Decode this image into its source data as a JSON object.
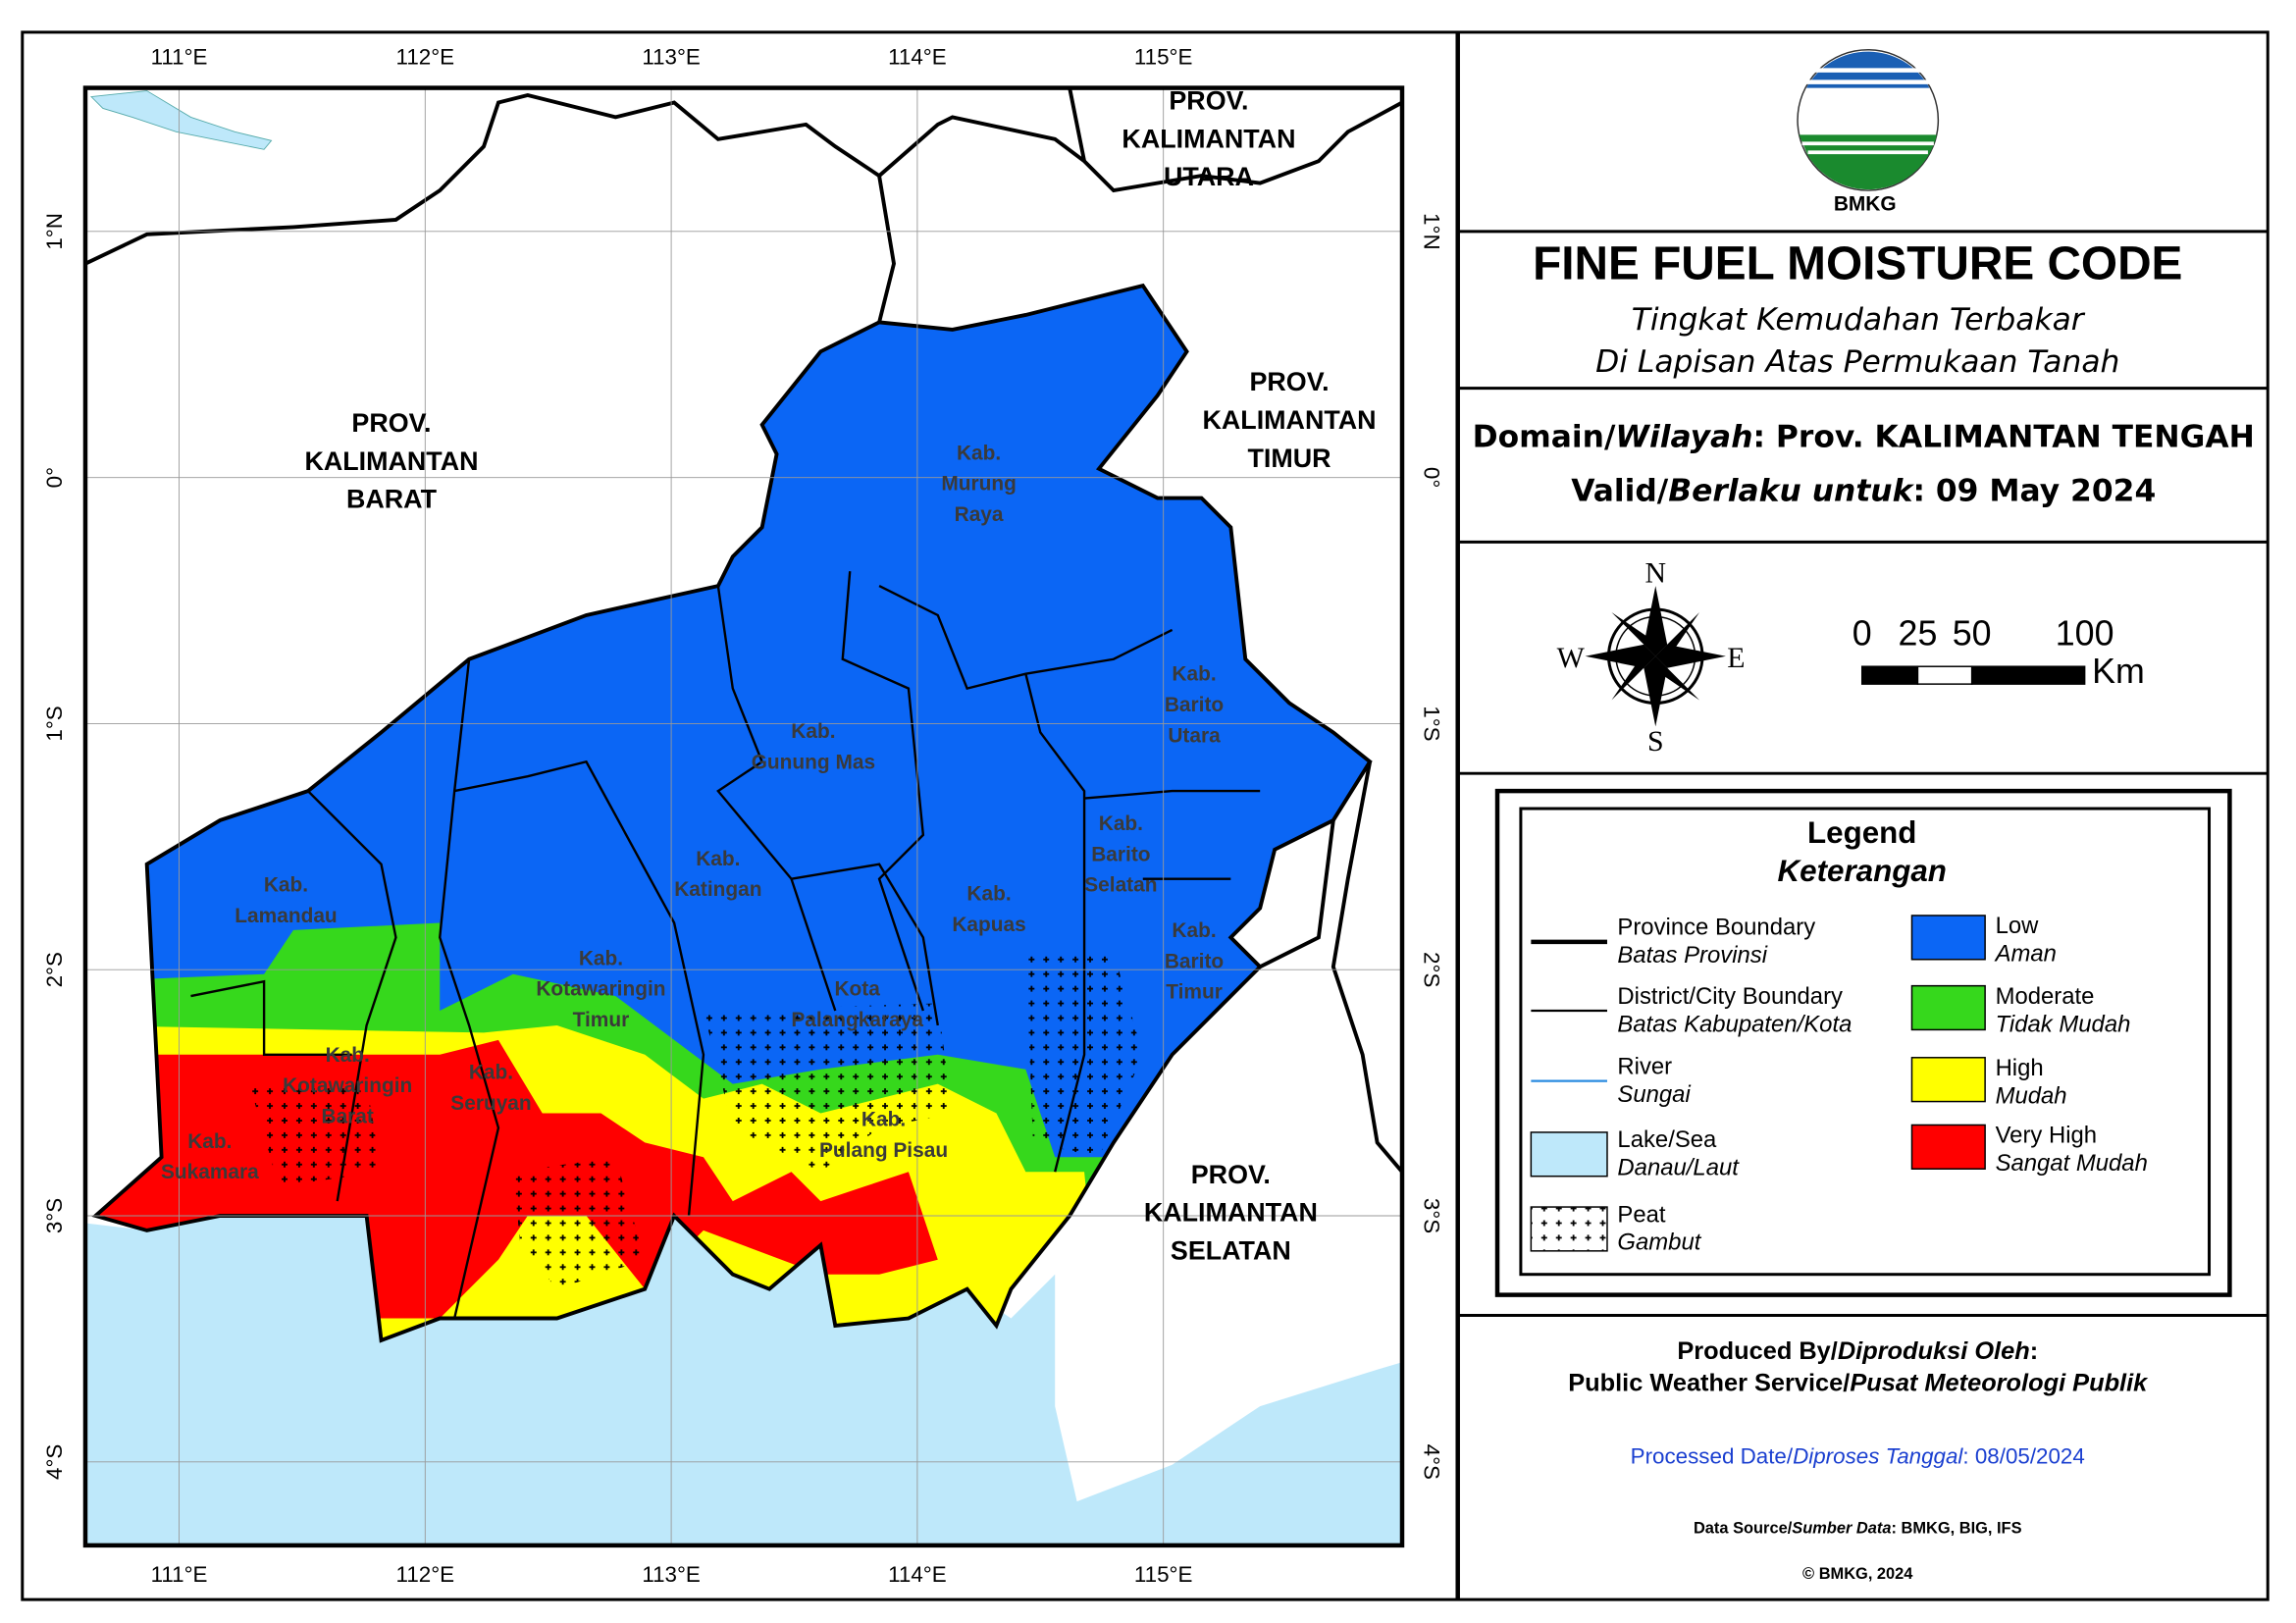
{
  "map": {
    "graticule": {
      "longitudes": [
        "111°E",
        "112°E",
        "113°E",
        "114°E",
        "115°E"
      ],
      "latitudes": [
        "1°N",
        "0°",
        "1°S",
        "2°S",
        "3°S",
        "4°S"
      ]
    },
    "province_labels": [
      [
        "PROV.",
        "KALIMANTAN",
        "BARAT"
      ],
      [
        "PROV.",
        "KALIMANTAN",
        "UTARA"
      ],
      [
        "PROV.",
        "KALIMANTAN",
        "TIMUR"
      ],
      [
        "PROV.",
        "KALIMANTAN",
        "SELATAN"
      ]
    ],
    "district_labels": [
      [
        "Kab.",
        "Murung",
        "Raya"
      ],
      [
        "Kab.",
        "Gunung Mas"
      ],
      [
        "Kab.",
        "Barito",
        "Utara"
      ],
      [
        "Kab.",
        "Katingan"
      ],
      [
        "Kab.",
        "Barito",
        "Selatan"
      ],
      [
        "Kab.",
        "Kapuas"
      ],
      [
        "Kab.",
        "Barito",
        "Timur"
      ],
      [
        "Kab.",
        "Lamandau"
      ],
      [
        "Kab.",
        "Kotawaringin",
        "Timur"
      ],
      [
        "Kota",
        "Palangkaraya"
      ],
      [
        "Kab.",
        "Kotawaringin",
        "Barat"
      ],
      [
        "Kab.",
        "Seruyan"
      ],
      [
        "Kab.",
        "Pulang Pisau"
      ],
      [
        "Kab.",
        "Sukamara"
      ]
    ]
  },
  "header": {
    "logo_text": "BMKG",
    "title": "FINE FUEL MOISTURE CODE",
    "subtitle": [
      "Tingkat Kemudahan Terbakar",
      "Di Lapisan Atas Permukaan Tanah"
    ]
  },
  "domain": {
    "domain": [
      "Domain/",
      "Wilayah",
      ": Prov. KALIMANTAN TENGAH"
    ],
    "valid": [
      "Valid/",
      "Berlaku untuk",
      ": 09 May 2024"
    ]
  },
  "compass": {
    "N": "N",
    "E": "E",
    "S": "S",
    "W": "W"
  },
  "scale_bar": {
    "ticks": [
      "0",
      "25",
      "50",
      "100"
    ],
    "unit": "Km"
  },
  "legend": {
    "title": "Legend",
    "subtitle": "Keterangan",
    "items": [
      {
        "label": "Province Boundary",
        "label_id": "Batas Provinsi"
      },
      {
        "label": "District/City Boundary",
        "label_id": "Batas Kabupaten/Kota"
      },
      {
        "label": "River",
        "label_id": "Sungai"
      },
      {
        "label": "Lake/Sea",
        "label_id": "Danau/Laut"
      },
      {
        "label": "Peat",
        "label_id": "Gambut"
      },
      {
        "label": "Low",
        "label_id": "Aman",
        "color": "#0b66f5"
      },
      {
        "label": "Moderate",
        "label_id": "Tidak Mudah",
        "color": "#36d81c"
      },
      {
        "label": "High",
        "label_id": "Mudah",
        "color": "#ffff00"
      },
      {
        "label": "Very High",
        "label_id": "Sangat Mudah",
        "color": "#ff0000"
      }
    ]
  },
  "credits": {
    "produced_by": [
      "Produced By/",
      "Diproduksi Oleh",
      ":"
    ],
    "producer": [
      "Public Weather Service/",
      "Pusat Meteorologi Publik"
    ],
    "processed": [
      "Processed Date/",
      "Diproses Tanggal",
      ": 08/05/2024"
    ],
    "source": [
      "Data Source/",
      "Sumber Data",
      ": BMKG, BIG, IFS"
    ],
    "copyright": "© BMKG, 2024"
  }
}
